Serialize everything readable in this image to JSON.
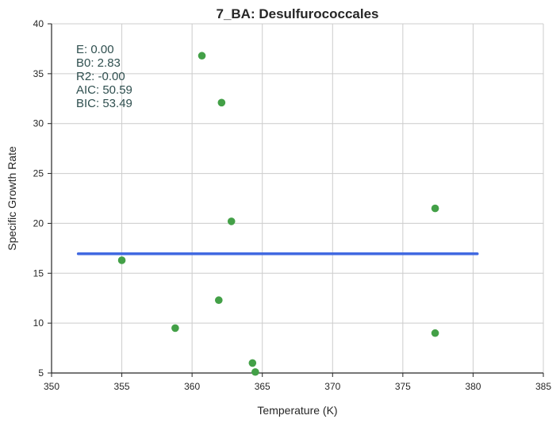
{
  "chart_data": {
    "type": "scatter",
    "title": "7_BA: Desulfurococcales",
    "xlabel": "Temperature (K)",
    "ylabel": "Specific Growth Rate",
    "xlim": [
      350,
      385
    ],
    "ylim": [
      5,
      40
    ],
    "xticks": [
      "350",
      "355",
      "360",
      "365",
      "370",
      "375",
      "380",
      "385"
    ],
    "yticks": [
      "5",
      "10",
      "15",
      "20",
      "25",
      "30",
      "35",
      "40"
    ],
    "grid": true,
    "series": [
      {
        "type": "scatter",
        "color": "#43a047",
        "points": [
          {
            "x": 355.0,
            "y": 16.3
          },
          {
            "x": 358.8,
            "y": 9.5
          },
          {
            "x": 360.7,
            "y": 36.8
          },
          {
            "x": 361.9,
            "y": 12.3
          },
          {
            "x": 362.1,
            "y": 32.1
          },
          {
            "x": 362.8,
            "y": 20.2
          },
          {
            "x": 364.3,
            "y": 6.0
          },
          {
            "x": 364.5,
            "y": 5.1
          },
          {
            "x": 377.3,
            "y": 21.5
          },
          {
            "x": 377.3,
            "y": 9.0
          }
        ]
      },
      {
        "type": "line",
        "color": "#4169e1",
        "points": [
          {
            "x": 351.9,
            "y": 16.95
          },
          {
            "x": 380.3,
            "y": 16.95
          }
        ]
      }
    ],
    "annotations": [
      "E:  0.00",
      "B0:  2.83",
      "R2:  -0.00",
      "AIC: 50.59",
      "BIC: 53.49"
    ]
  }
}
